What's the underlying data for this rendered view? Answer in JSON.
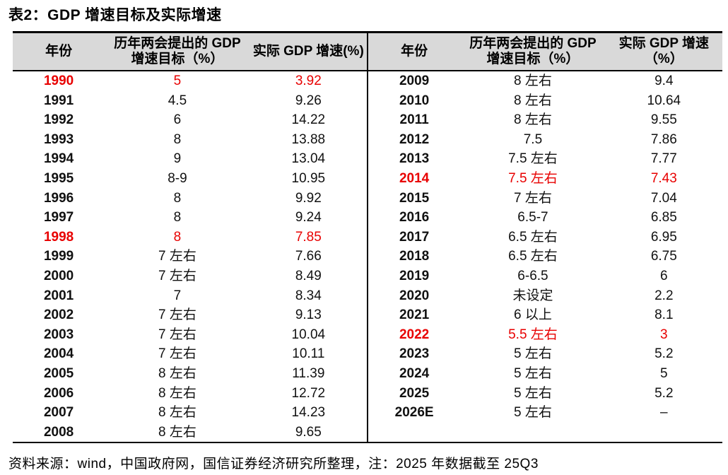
{
  "title": "表2：GDP 增速目标及实际增速",
  "footer": "资料来源：wind，中国政府网，国信证券经济研究所整理，注：2025 年数据截至 25Q3",
  "colors": {
    "highlight_red": "#e80000",
    "header_background": "#d9d9d9",
    "border": "#000000"
  },
  "table": {
    "headers": {
      "year": "年份",
      "target": "历年两会提出的 GDP 增速目标（%）",
      "actual_left": "实际 GDP 增速(%)",
      "actual_right": "实际 GDP 增速（%）"
    },
    "left_rows": [
      {
        "year": "1990",
        "target": "5",
        "actual": "3.92",
        "highlight": true
      },
      {
        "year": "1991",
        "target": "4.5",
        "actual": "9.26",
        "highlight": false
      },
      {
        "year": "1992",
        "target": "6",
        "actual": "14.22",
        "highlight": false
      },
      {
        "year": "1993",
        "target": "8",
        "actual": "13.88",
        "highlight": false
      },
      {
        "year": "1994",
        "target": "9",
        "actual": "13.04",
        "highlight": false
      },
      {
        "year": "1995",
        "target": "8-9",
        "actual": "10.95",
        "highlight": false
      },
      {
        "year": "1996",
        "target": "8",
        "actual": "9.92",
        "highlight": false
      },
      {
        "year": "1997",
        "target": "8",
        "actual": "9.24",
        "highlight": false
      },
      {
        "year": "1998",
        "target": "8",
        "actual": "7.85",
        "highlight": true
      },
      {
        "year": "1999",
        "target": "7 左右",
        "actual": "7.66",
        "highlight": false
      },
      {
        "year": "2000",
        "target": "7 左右",
        "actual": "8.49",
        "highlight": false
      },
      {
        "year": "2001",
        "target": "7",
        "actual": "8.34",
        "highlight": false
      },
      {
        "year": "2002",
        "target": "7 左右",
        "actual": "9.13",
        "highlight": false
      },
      {
        "year": "2003",
        "target": "7 左右",
        "actual": "10.04",
        "highlight": false
      },
      {
        "year": "2004",
        "target": "7 左右",
        "actual": "10.11",
        "highlight": false
      },
      {
        "year": "2005",
        "target": "8 左右",
        "actual": "11.39",
        "highlight": false
      },
      {
        "year": "2006",
        "target": "8 左右",
        "actual": "12.72",
        "highlight": false
      },
      {
        "year": "2007",
        "target": "8 左右",
        "actual": "14.23",
        "highlight": false
      },
      {
        "year": "2008",
        "target": "8 左右",
        "actual": "9.65",
        "highlight": false
      }
    ],
    "right_rows": [
      {
        "year": "2009",
        "target": "8 左右",
        "actual": "9.4",
        "highlight": false
      },
      {
        "year": "2010",
        "target": "8 左右",
        "actual": "10.64",
        "highlight": false
      },
      {
        "year": "2011",
        "target": "8 左右",
        "actual": "9.55",
        "highlight": false
      },
      {
        "year": "2012",
        "target": "7.5",
        "actual": "7.86",
        "highlight": false
      },
      {
        "year": "2013",
        "target": "7.5 左右",
        "actual": "7.77",
        "highlight": false
      },
      {
        "year": "2014",
        "target": "7.5 左右",
        "actual": "7.43",
        "highlight": true
      },
      {
        "year": "2015",
        "target": "7 左右",
        "actual": "7.04",
        "highlight": false
      },
      {
        "year": "2016",
        "target": "6.5-7",
        "actual": "6.85",
        "highlight": false
      },
      {
        "year": "2017",
        "target": "6.5 左右",
        "actual": "6.95",
        "highlight": false
      },
      {
        "year": "2018",
        "target": "6.5 左右",
        "actual": "6.75",
        "highlight": false
      },
      {
        "year": "2019",
        "target": "6-6.5",
        "actual": "6",
        "highlight": false
      },
      {
        "year": "2020",
        "target": "未设定",
        "actual": "2.2",
        "highlight": false
      },
      {
        "year": "2021",
        "target": "6 以上",
        "actual": "8.1",
        "highlight": false
      },
      {
        "year": "2022",
        "target": "5.5 左右",
        "actual": "3",
        "highlight": true
      },
      {
        "year": "2023",
        "target": "5 左右",
        "actual": "5.2",
        "highlight": false
      },
      {
        "year": "2024",
        "target": "5 左右",
        "actual": "5",
        "highlight": false
      },
      {
        "year": "2025",
        "target": "5 左右",
        "actual": "5.2",
        "highlight": false
      },
      {
        "year": "2026E",
        "target": "5 左右",
        "actual": "–",
        "highlight": false
      }
    ]
  }
}
